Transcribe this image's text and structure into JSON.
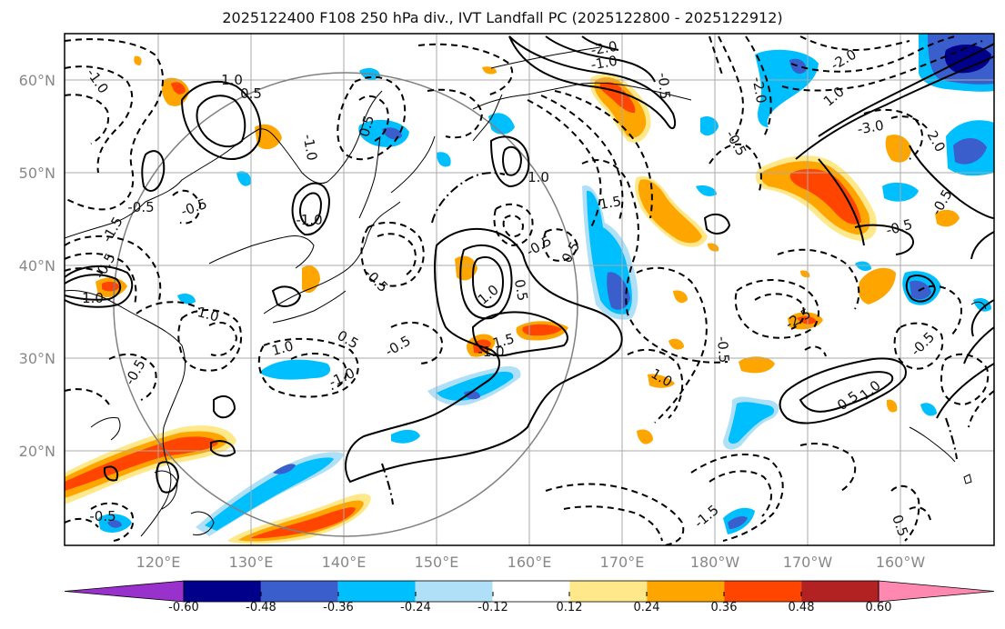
{
  "title": "2025122400 F108 250 hPa div., IVT Landfall PC (2025122800 - 2025122912)",
  "map": {
    "lon_labels": [
      "120°E",
      "130°E",
      "140°E",
      "150°E",
      "160°E",
      "170°E",
      "180°W",
      "170°W",
      "160°W"
    ],
    "lat_labels": [
      "60°N",
      "50°N",
      "40°N",
      "30°N",
      "20°N"
    ],
    "contour_labels": [
      "-1.0",
      "1.0",
      "0.5",
      "-2.0",
      "-1.0",
      "-0.5",
      "0.5",
      "-1.0",
      "1.0",
      "-0.5",
      "-0.5",
      "1.5",
      "-0.5",
      "1.0",
      "-1.0",
      "0.5",
      "-0.5",
      "1.0",
      "-0.5",
      "-1.0",
      "1.0",
      "1.5",
      "-2.5",
      "-1.0",
      "-0.5",
      "-1.0",
      "1.0",
      "-0.5",
      "0.5",
      "-1.5",
      "-2.0",
      "-0.5",
      "-2.0",
      "-3.0",
      "2.0",
      "1.0",
      "-0.5",
      "-0.5",
      "0.5",
      "-1.0",
      "-0.5",
      "-0.5",
      "0.5",
      "-1.5",
      "-0.5",
      "0.5"
    ]
  },
  "colorbar": {
    "levels": [
      "-0.60",
      "-0.48",
      "-0.36",
      "-0.24",
      "-0.12",
      "0.12",
      "0.24",
      "0.36",
      "0.48",
      "0.60"
    ],
    "colors": [
      "#9932cc",
      "#00008b",
      "#3a5fcd",
      "#00bfff",
      "#b0e0f8",
      "#ffffff",
      "#ffe88a",
      "#ffa500",
      "#ff4500",
      "#b22222",
      "#ff88b0"
    ]
  }
}
